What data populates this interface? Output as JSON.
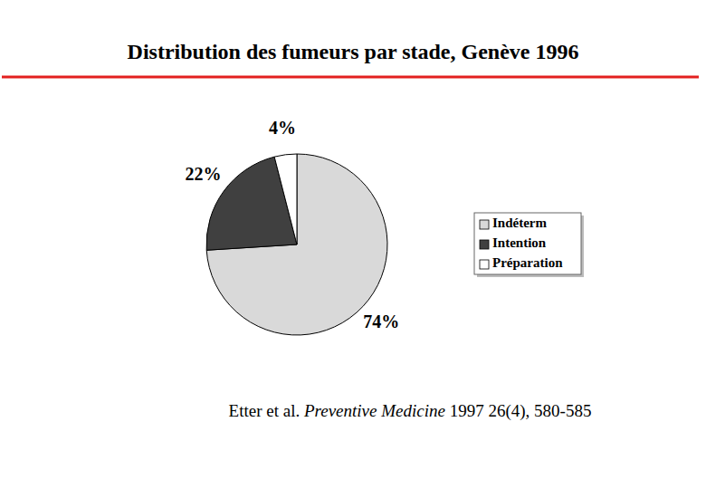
{
  "chart_data": {
    "type": "pie",
    "title": "Distribution des fumeurs par stade, Genève 1996",
    "categories": [
      "Indéterm",
      "Intention",
      "Préparation"
    ],
    "values": [
      74,
      22,
      4
    ],
    "value_labels": [
      "74%",
      "22%",
      "4%"
    ],
    "colors": [
      "#d9d9d9",
      "#404040",
      "#ffffff"
    ],
    "data_labels": true,
    "legend": "right",
    "source": {
      "authors": "Etter et al.",
      "journal": "Preventive Medicine",
      "citation": "1997 26(4), 580-585"
    }
  }
}
